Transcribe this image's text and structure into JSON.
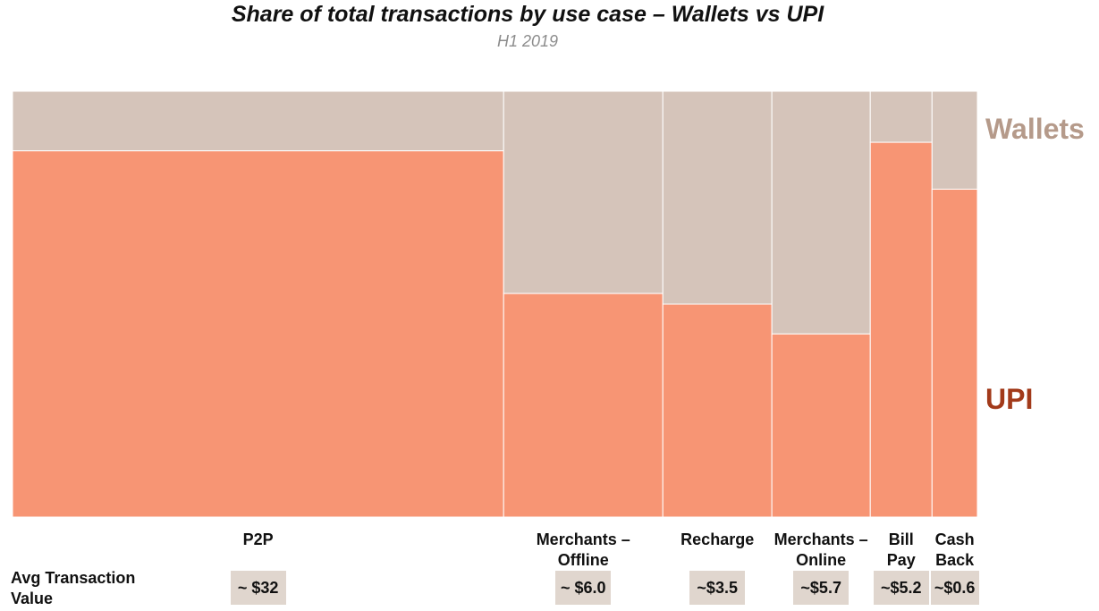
{
  "chart_data": {
    "type": "bar",
    "subtype": "marimekko",
    "title": "Share of total transactions by use case – Wallets vs UPI",
    "subtitle": "H1 2019",
    "categories": [
      "P2P",
      "Merchants –\nOffline",
      "Recharge",
      "Merchants –\nOnline",
      "Bill\nPay",
      "Cash\nBack"
    ],
    "category_widths": [
      50.9,
      16.5,
      11.3,
      10.2,
      6.4,
      4.7
    ],
    "series": [
      {
        "name": "UPI",
        "values": [
          86,
          52.5,
          50,
          43,
          88,
          77
        ],
        "color": "#f79574"
      },
      {
        "name": "Wallets",
        "values": [
          14,
          47.5,
          50,
          57,
          12,
          23
        ],
        "color": "#d5c4ba"
      }
    ],
    "ylim": [
      0,
      100
    ],
    "series_labels": {
      "wallets": "Wallets",
      "upi": "UPI"
    },
    "avg_label": "Avg Transaction Value",
    "avg_values": [
      "~ $32",
      "~ $6.0",
      "~$3.5",
      "~$5.7",
      "~$5.2",
      "~$0.6"
    ]
  }
}
